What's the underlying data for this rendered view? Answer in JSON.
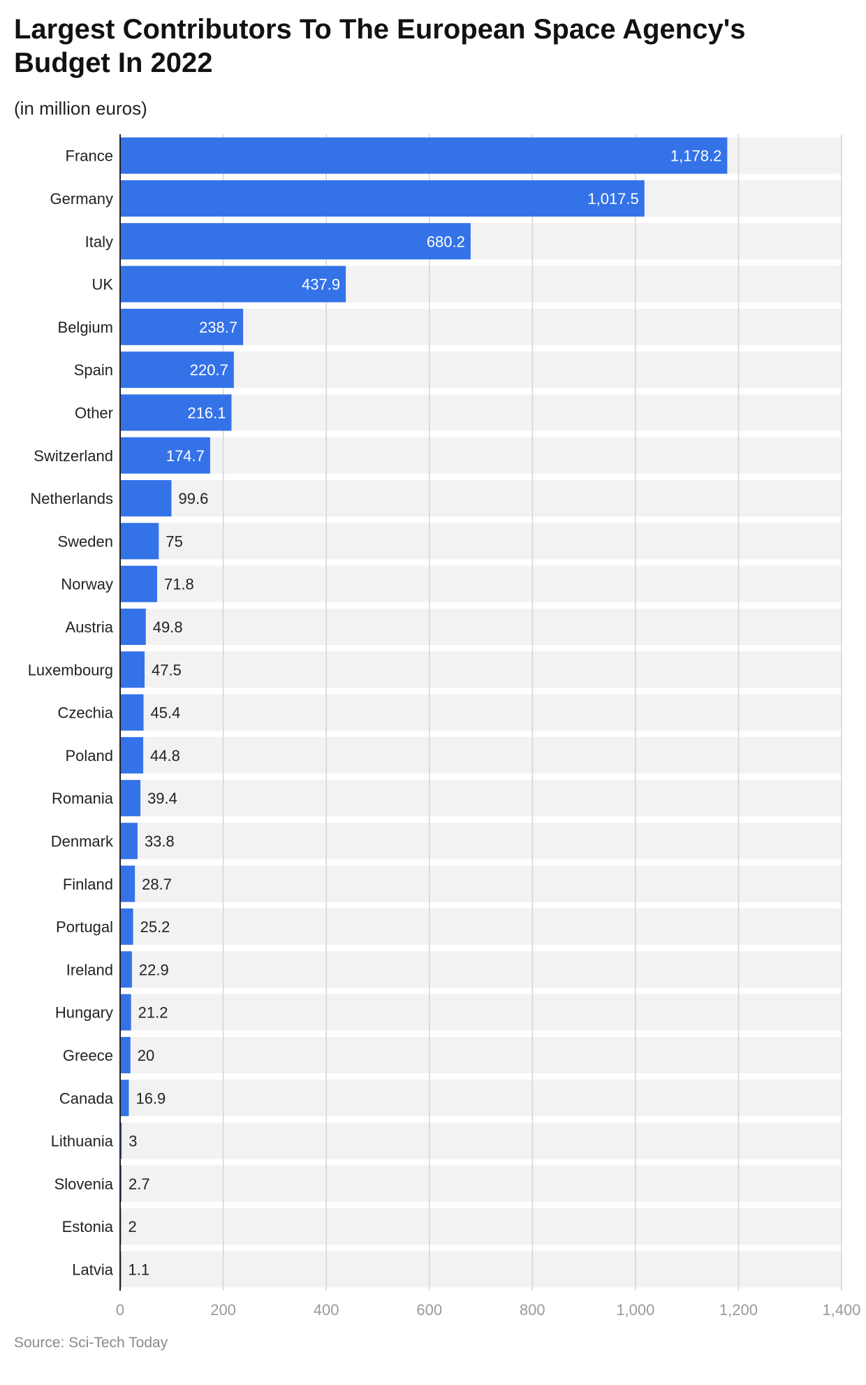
{
  "header": {
    "title": "Largest Contributors To The European Space Agency's Budget In 2022",
    "subtitle": "(in million euros)"
  },
  "footer": {
    "source": "Source: Sci-Tech Today"
  },
  "colors": {
    "bar": "#3472e8",
    "row_background": "#f2f2f2",
    "gridline": "#d4d4d4",
    "axis": "#222222"
  },
  "chart_data": {
    "type": "bar",
    "orientation": "horizontal",
    "title": "Largest Contributors To The European Space Agency's Budget In 2022",
    "subtitle": "(in million euros)",
    "xlabel": "",
    "ylabel": "",
    "xlim": [
      0,
      1400
    ],
    "x_ticks": [
      0,
      200,
      400,
      600,
      800,
      1000,
      1200,
      1400
    ],
    "x_tick_labels": [
      "0",
      "200",
      "400",
      "600",
      "800",
      "1,000",
      "1,200",
      "1,400"
    ],
    "grid": true,
    "legend": "none",
    "categories": [
      "France",
      "Germany",
      "Italy",
      "UK",
      "Belgium",
      "Spain",
      "Other",
      "Switzerland",
      "Netherlands",
      "Sweden",
      "Norway",
      "Austria",
      "Luxembourg",
      "Czechia",
      "Poland",
      "Romania",
      "Denmark",
      "Finland",
      "Portugal",
      "Ireland",
      "Hungary",
      "Greece",
      "Canada",
      "Lithuania",
      "Slovenia",
      "Estonia",
      "Latvia"
    ],
    "values": [
      1178.2,
      1017.5,
      680.2,
      437.9,
      238.7,
      220.7,
      216.1,
      174.7,
      99.6,
      75,
      71.8,
      49.8,
      47.5,
      45.4,
      44.8,
      39.4,
      33.8,
      28.7,
      25.2,
      22.9,
      21.2,
      20,
      16.9,
      3,
      2.7,
      2,
      1.1
    ],
    "value_labels": [
      "1,178.2",
      "1,017.5",
      "680.2",
      "437.9",
      "238.7",
      "220.7",
      "216.1",
      "174.7",
      "99.6",
      "75",
      "71.8",
      "49.8",
      "47.5",
      "45.4",
      "44.8",
      "39.4",
      "33.8",
      "28.7",
      "25.2",
      "22.9",
      "21.2",
      "20",
      "16.9",
      "3",
      "2.7",
      "2",
      "1.1"
    ]
  }
}
